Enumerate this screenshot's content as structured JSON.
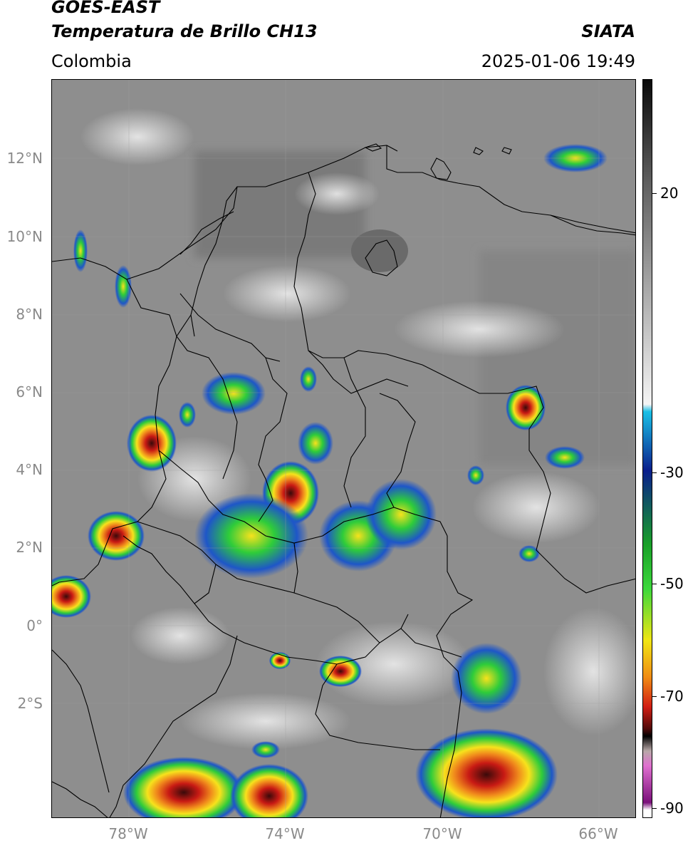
{
  "header": {
    "title_line1": "GOES-EAST",
    "title_line2": "Temperatura de Brillo CH13",
    "subtitle": "Colombia",
    "brand": "SIATA",
    "timestamp": "2025-01-06 19:49"
  },
  "map": {
    "lat_labels": [
      "12°N",
      "10°N",
      "8°N",
      "6°N",
      "4°N",
      "2°N",
      "0°",
      "2°S"
    ],
    "lon_labels": [
      "78°W",
      "74°W",
      "70°W",
      "66°W"
    ],
    "colors": {
      "background": "#8e8e8e",
      "borders": "#000000",
      "cold_blue": "#1e56c8",
      "cold_green": "#2ecc3a",
      "cold_yellow": "#f7e21c",
      "cold_orange": "#f08a1c",
      "cold_red": "#c81a14",
      "coldest_dark": "#3a0a0a"
    }
  },
  "colorbar": {
    "labels": [
      "20",
      "-30",
      "-50",
      "-70",
      "-90"
    ],
    "colors": [
      "#0a0a0a",
      "#606060",
      "#b0b0b0",
      "#f4f4f4",
      "#19c0e6",
      "#0a1e8c",
      "#19a028",
      "#3cd83c",
      "#f0e614",
      "#f08c14",
      "#d21e14",
      "#500a0a",
      "#000000",
      "#b8a8a8",
      "#e070d0",
      "#7a107a",
      "#ffffff"
    ]
  }
}
